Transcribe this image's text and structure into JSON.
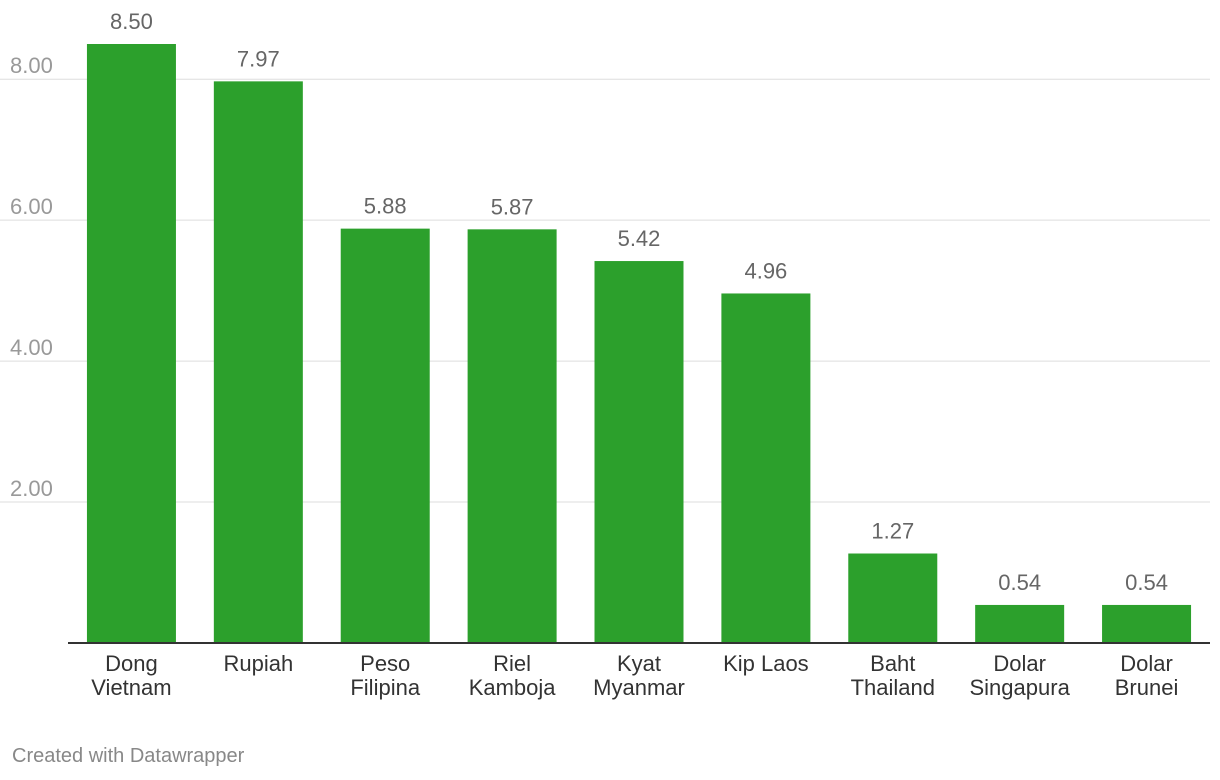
{
  "chart_data": {
    "type": "bar",
    "categories": [
      [
        "Dong",
        "Vietnam"
      ],
      [
        "Rupiah"
      ],
      [
        "Peso",
        "Filipina"
      ],
      [
        "Riel",
        "Kamboja"
      ],
      [
        "Kyat",
        "Myanmar"
      ],
      [
        "Kip Laos"
      ],
      [
        "Baht",
        "Thailand"
      ],
      [
        "Dolar",
        "Singapura"
      ],
      [
        "Dolar",
        "Brunei"
      ]
    ],
    "values": [
      8.5,
      7.97,
      5.88,
      5.87,
      5.42,
      4.96,
      1.27,
      0.54,
      0.54
    ],
    "value_labels": [
      "8.50",
      "7.97",
      "5.88",
      "5.87",
      "5.42",
      "4.96",
      "1.27",
      "0.54",
      "0.54"
    ],
    "yticks": [
      2,
      4,
      6,
      8
    ],
    "ytick_labels": [
      "2.00",
      "4.00",
      "6.00",
      "8.00"
    ],
    "ylim": [
      0,
      8.5
    ],
    "grid": true,
    "bar_color": "#2ca02c",
    "title": "",
    "xlabel": "",
    "ylabel": ""
  },
  "footer": "Created with Datawrapper"
}
